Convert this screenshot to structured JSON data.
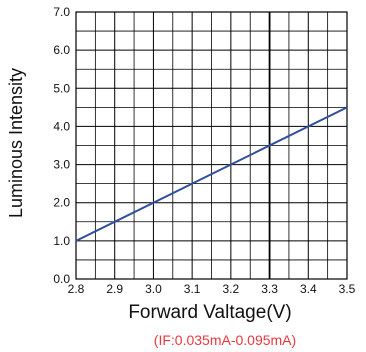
{
  "chart_data": {
    "type": "line",
    "xlabel": "Forward Valtage(V)",
    "ylabel": "Luminous Intensity",
    "annotation": "(IF:0.035mA-0.095mA)",
    "xlim": [
      2.8,
      3.5
    ],
    "ylim": [
      0.0,
      7.0
    ],
    "x_ticks": [
      "2.8",
      "2.9",
      "3.0",
      "3.1",
      "3.2",
      "3.3",
      "3.4",
      "3.5"
    ],
    "y_ticks": [
      "0.0",
      "1.0",
      "2.0",
      "3.0",
      "4.0",
      "5.0",
      "6.0",
      "7.0"
    ],
    "grid": true,
    "series": [
      {
        "x": [
          2.8,
          3.5
        ],
        "y": [
          1.0,
          4.5
        ]
      }
    ],
    "colors": {
      "line": "#2f4f9a",
      "grid": "#000000",
      "annotation": "#e8393f"
    }
  }
}
